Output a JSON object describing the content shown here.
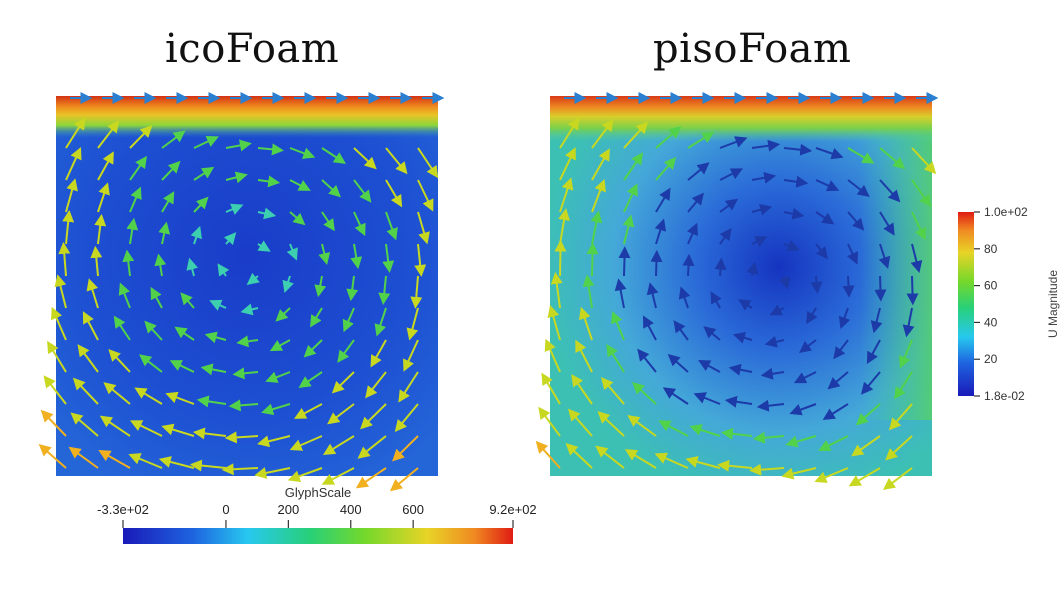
{
  "panels": [
    {
      "title": "icoFoam"
    },
    {
      "title": "pisoFoam"
    }
  ],
  "glyph_scale_bar": {
    "title": "GlyphScale",
    "range": [
      -330,
      920
    ],
    "ticks": [
      "-3.3e+02",
      "0",
      "200",
      "400",
      "600",
      "9.2e+02"
    ],
    "tick_values": [
      -330,
      0,
      200,
      400,
      600,
      920
    ]
  },
  "u_magnitude_bar": {
    "title": "U Magnitude",
    "range": [
      0.018,
      100
    ],
    "ticks": [
      "1.0e+02",
      "80",
      "60",
      "40",
      "20",
      "1.8e-02"
    ],
    "tick_values": [
      100,
      80,
      60,
      40,
      20,
      0.018
    ]
  },
  "colors": {
    "colormap": [
      "#1020b0",
      "#1e5cd9",
      "#2fa6e6",
      "#3ccfb0",
      "#52d24a",
      "#c8d820",
      "#f0b020",
      "#e8501c",
      "#d02010"
    ],
    "lid_left": [
      "#d23214",
      "#f08a1e",
      "#e9c426",
      "#8bd63a",
      "#38c89a"
    ],
    "lid_right": [
      "#d83a18",
      "#ee8c22",
      "#d8cf2b",
      "#7ad04a",
      "#4ec9a6"
    ]
  }
}
